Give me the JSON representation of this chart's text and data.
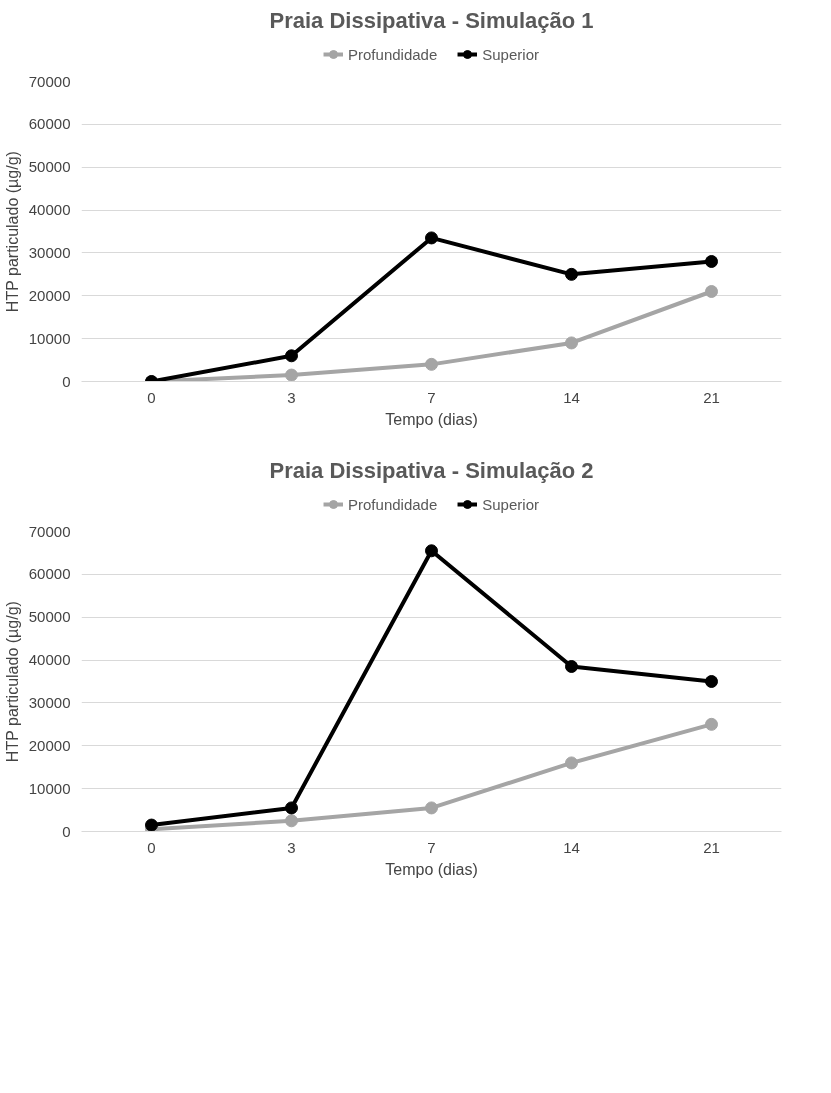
{
  "chart_data": [
    {
      "type": "line",
      "title": "Praia Dissipativa - Simulação 1",
      "xlabel": "Tempo (dias)",
      "ylabel": "HTP particulado (µg/g)",
      "categories": [
        "0",
        "3",
        "7",
        "14",
        "21"
      ],
      "ylim": [
        0,
        70000
      ],
      "yticks": [
        0,
        10000,
        20000,
        30000,
        40000,
        50000,
        60000,
        70000
      ],
      "grid": "y",
      "legend": "top",
      "marker": "circle",
      "series": [
        {
          "name": "Profundidade",
          "color": "#a5a5a5",
          "values": [
            0,
            1500,
            4000,
            9000,
            21000
          ]
        },
        {
          "name": "Superior",
          "color": "#000000",
          "values": [
            0,
            6000,
            33500,
            25000,
            28000
          ]
        }
      ]
    },
    {
      "type": "line",
      "title": "Praia Dissipativa - Simulação 2",
      "xlabel": "Tempo (dias)",
      "ylabel": "HTP particulado (µg/g)",
      "categories": [
        "0",
        "3",
        "7",
        "14",
        "21"
      ],
      "ylim": [
        0,
        70000
      ],
      "yticks": [
        0,
        10000,
        20000,
        30000,
        40000,
        50000,
        60000,
        70000
      ],
      "grid": "y",
      "legend": "top",
      "marker": "circle",
      "series": [
        {
          "name": "Profundidade",
          "color": "#a5a5a5",
          "values": [
            500,
            2500,
            5500,
            16000,
            25000
          ]
        },
        {
          "name": "Superior",
          "color": "#000000",
          "values": [
            1500,
            5500,
            65500,
            38500,
            35000
          ]
        }
      ]
    }
  ]
}
